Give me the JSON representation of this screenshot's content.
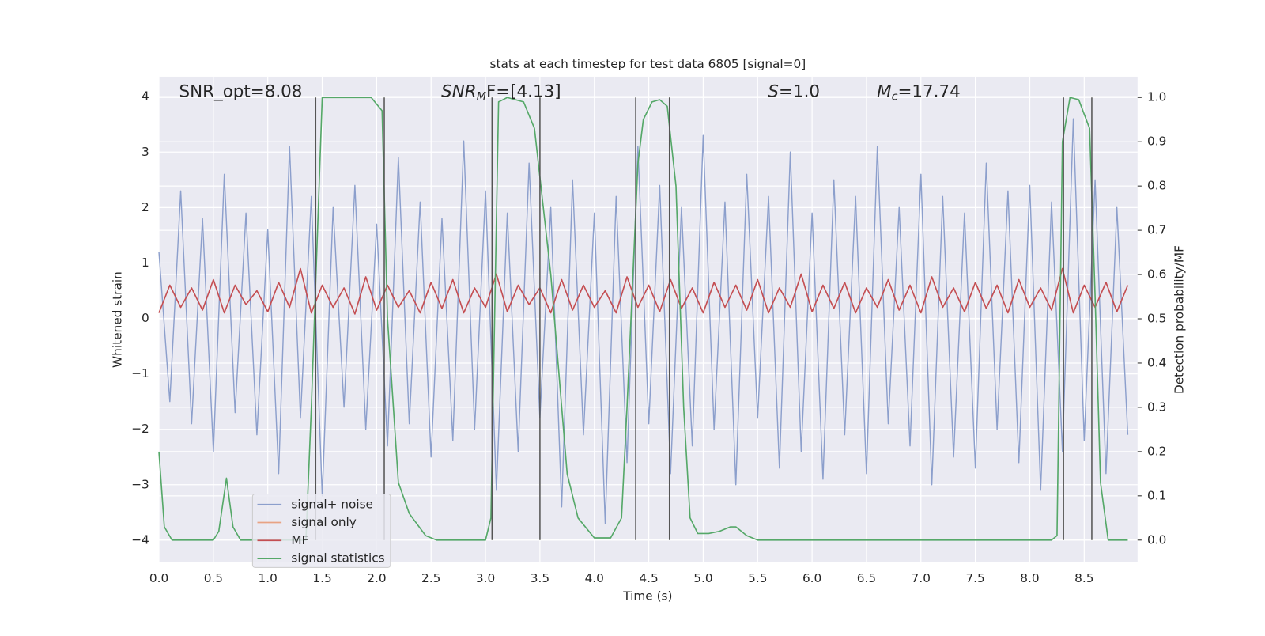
{
  "chart_data": {
    "type": "line",
    "title": "stats at each timestep for test data 6805 [signal=0]",
    "x_label": "Time (s)",
    "y_label": "Whitened strain",
    "y2_label": "Detection probability/MF",
    "annotations": [
      {
        "text": "SNR_opt=8.08"
      },
      {
        "text": "SNR",
        "sub": "M",
        "tail": "F=[4.13]"
      },
      {
        "text": "S",
        "tail": "=1.0"
      },
      {
        "text": "M",
        "sub": "c",
        "tail": "=17.74"
      }
    ],
    "xlim": [
      0,
      8.99
    ],
    "ylim": [
      -4.39,
      4.36
    ],
    "y2lim": [
      -0.049,
      1.047
    ],
    "xticks": [
      {
        "value": 0,
        "label": "0.0"
      },
      0.5,
      {
        "value": 1,
        "label": "1.0"
      },
      1.5,
      {
        "value": 2,
        "label": "2.0"
      },
      2.5,
      {
        "value": 3,
        "label": "3.0"
      },
      3.5,
      {
        "value": 4,
        "label": "4.0"
      },
      4.5,
      {
        "value": 5,
        "label": "5.0"
      },
      5.5,
      {
        "value": 6,
        "label": "6.0"
      },
      6.5,
      {
        "value": 7,
        "label": "7.0"
      },
      7.5,
      {
        "value": 8,
        "label": "8.0"
      },
      8.5
    ],
    "yticks": [
      {
        "value": -4,
        "label": "−4"
      },
      {
        "value": -3,
        "label": "−3"
      },
      {
        "value": -2,
        "label": "−2"
      },
      {
        "value": -1,
        "label": "−1"
      },
      0,
      1,
      2,
      3,
      4
    ],
    "y2ticks": [
      {
        "value": 0,
        "label": "0.0"
      },
      0.1,
      0.2,
      0.3,
      0.4,
      0.5,
      0.6,
      0.7,
      0.8,
      0.9,
      {
        "value": 1,
        "label": "1.0"
      }
    ],
    "grid": true,
    "legend": "lower left",
    "x": [
      0.0,
      0.1,
      0.2,
      0.3,
      0.4,
      0.5,
      0.6,
      0.7,
      0.8,
      0.9,
      1.0,
      1.1,
      1.2,
      1.3,
      1.4,
      1.5,
      1.6,
      1.7,
      1.8,
      1.9,
      2.0,
      2.1,
      2.2,
      2.3,
      2.4,
      2.5,
      2.6,
      2.7,
      2.8,
      2.9,
      3.0,
      3.1,
      3.2,
      3.3,
      3.4,
      3.5,
      3.6,
      3.7,
      3.8,
      3.9,
      4.0,
      4.1,
      4.2,
      4.3,
      4.4,
      4.5,
      4.6,
      4.7,
      4.8,
      4.9,
      5.0,
      5.1,
      5.2,
      5.3,
      5.4,
      5.5,
      5.6,
      5.7,
      5.8,
      5.9,
      6.0,
      6.1,
      6.2,
      6.3,
      6.4,
      6.5,
      6.6,
      6.7,
      6.8,
      6.9,
      7.0,
      7.1,
      7.2,
      7.3,
      7.4,
      7.5,
      7.6,
      7.7,
      7.8,
      7.9,
      8.0,
      8.1,
      8.2,
      8.3,
      8.4,
      8.5,
      8.6,
      8.7,
      8.8,
      8.9
    ],
    "series": [
      {
        "name": "signal+ noise",
        "color": "#8c9fcc",
        "values": [
          1.2,
          -1.5,
          2.3,
          -1.9,
          1.8,
          -2.4,
          2.6,
          -1.7,
          1.9,
          -2.1,
          1.6,
          -2.8,
          3.1,
          -1.8,
          2.2,
          -3.2,
          2.0,
          -1.6,
          2.4,
          -2.0,
          1.7,
          -2.3,
          2.9,
          -1.9,
          2.1,
          -2.5,
          1.8,
          -2.2,
          3.2,
          -2.0,
          2.3,
          -3.1,
          1.9,
          -2.4,
          2.8,
          -1.8,
          2.0,
          -3.4,
          2.5,
          -2.1,
          1.9,
          -3.7,
          2.2,
          -2.6,
          3.1,
          -1.9,
          2.4,
          -2.8,
          2.0,
          -2.3,
          3.3,
          -2.0,
          2.1,
          -3.0,
          2.6,
          -1.8,
          2.2,
          -2.7,
          3.0,
          -2.4,
          1.9,
          -2.9,
          2.5,
          -2.1,
          2.2,
          -2.8,
          3.1,
          -1.9,
          2.0,
          -2.3,
          2.6,
          -3.0,
          2.2,
          -2.5,
          1.9,
          -2.7,
          2.8,
          -2.0,
          2.3,
          -2.6,
          2.4,
          -3.1,
          2.1,
          -2.4,
          3.6,
          -2.2,
          2.5,
          -2.8,
          2.0,
          -2.1
        ]
      },
      {
        "name": "signal only",
        "color": "#e8a384"
      },
      {
        "name": "MF",
        "color": "#c44e52",
        "values": [
          0.1,
          0.6,
          0.2,
          0.55,
          0.15,
          0.7,
          0.1,
          0.6,
          0.25,
          0.5,
          0.12,
          0.65,
          0.2,
          0.9,
          0.1,
          0.6,
          0.2,
          0.55,
          0.08,
          0.75,
          0.15,
          0.6,
          0.2,
          0.5,
          0.1,
          0.65,
          0.18,
          0.7,
          0.1,
          0.55,
          0.2,
          0.8,
          0.12,
          0.6,
          0.25,
          0.55,
          0.1,
          0.7,
          0.15,
          0.6,
          0.2,
          0.5,
          0.1,
          0.75,
          0.2,
          0.6,
          0.12,
          0.7,
          0.18,
          0.55,
          0.1,
          0.65,
          0.2,
          0.6,
          0.15,
          0.7,
          0.1,
          0.55,
          0.2,
          0.8,
          0.12,
          0.6,
          0.18,
          0.65,
          0.1,
          0.55,
          0.2,
          0.7,
          0.15,
          0.6,
          0.1,
          0.75,
          0.2,
          0.55,
          0.12,
          0.65,
          0.18,
          0.6,
          0.1,
          0.7,
          0.2,
          0.55,
          0.15,
          0.9,
          0.1,
          0.6,
          0.2,
          0.65,
          0.12,
          0.6
        ]
      },
      {
        "name": "signal statistics",
        "color": "#55a868",
        "axis": "y2",
        "x": [
          0.0,
          0.05,
          0.12,
          0.5,
          0.55,
          0.62,
          0.68,
          0.75,
          1.35,
          1.4,
          1.5,
          1.95,
          2.05,
          2.1,
          2.2,
          2.3,
          2.45,
          2.55,
          3.0,
          3.05,
          3.12,
          3.2,
          3.35,
          3.45,
          3.6,
          3.75,
          3.85,
          4.0,
          4.15,
          4.25,
          4.3,
          4.4,
          4.45,
          4.53,
          4.6,
          4.67,
          4.75,
          4.82,
          4.88,
          4.95,
          5.05,
          5.15,
          5.25,
          5.3,
          5.4,
          5.5,
          8.2,
          8.25,
          8.3,
          8.37,
          8.45,
          8.55,
          8.6,
          8.65,
          8.72,
          8.9
        ],
        "values": [
          0.2,
          0.03,
          0.0,
          0.0,
          0.02,
          0.14,
          0.03,
          0.0,
          0.0,
          0.3,
          1.0,
          1.0,
          0.97,
          0.5,
          0.13,
          0.06,
          0.01,
          0.0,
          0.0,
          0.05,
          0.99,
          1.0,
          0.99,
          0.93,
          0.6,
          0.15,
          0.05,
          0.005,
          0.005,
          0.05,
          0.3,
          0.85,
          0.95,
          0.99,
          0.995,
          0.98,
          0.8,
          0.3,
          0.05,
          0.015,
          0.015,
          0.02,
          0.03,
          0.03,
          0.01,
          0.0,
          0.0,
          0.01,
          0.9,
          1.0,
          0.995,
          0.93,
          0.55,
          0.13,
          0.0,
          0.0
        ]
      }
    ],
    "vlines": [
      1.44,
      2.07,
      3.06,
      3.5,
      4.38,
      4.69,
      8.31,
      8.57
    ]
  }
}
